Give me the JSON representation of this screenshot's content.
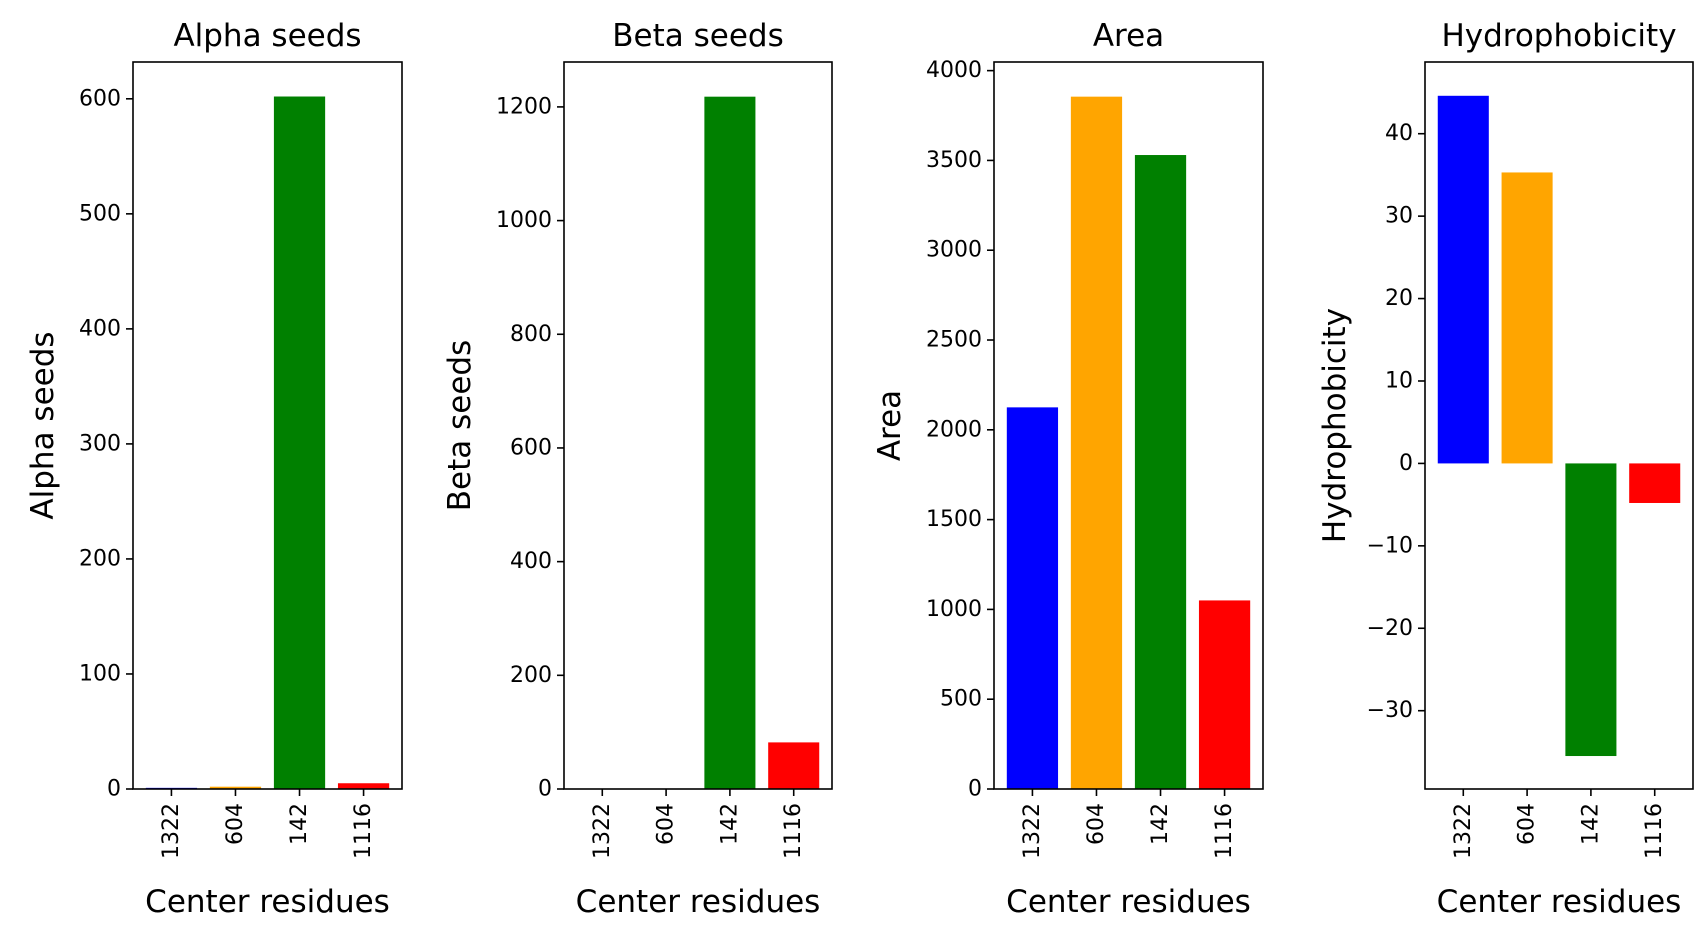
{
  "chart_data": [
    {
      "type": "bar",
      "title": "Alpha seeds",
      "xlabel": "Center residues",
      "ylabel": "Alpha seeds",
      "categories": [
        "1322",
        "604",
        "142",
        "1116"
      ],
      "values": [
        1,
        2,
        602,
        5
      ],
      "colors": [
        "#0000ff",
        "#ffa500",
        "#008000",
        "#ff0000"
      ],
      "ylim": [
        0,
        632
      ],
      "yticks": [
        0,
        100,
        200,
        300,
        400,
        500,
        600
      ],
      "ytick_labels": [
        "0",
        "100",
        "200",
        "300",
        "400",
        "500",
        "600"
      ]
    },
    {
      "type": "bar",
      "title": "Beta seeds",
      "xlabel": "Center residues",
      "ylabel": "Beta seeds",
      "categories": [
        "1322",
        "604",
        "142",
        "1116"
      ],
      "values": [
        0,
        0,
        1218,
        82
      ],
      "colors": [
        "#0000ff",
        "#ffa500",
        "#008000",
        "#ff0000"
      ],
      "ylim": [
        0,
        1279
      ],
      "yticks": [
        0,
        200,
        400,
        600,
        800,
        1000,
        1200
      ],
      "ytick_labels": [
        "0",
        "200",
        "400",
        "600",
        "800",
        "1000",
        "1200"
      ]
    },
    {
      "type": "bar",
      "title": "Area",
      "xlabel": "Center residues",
      "ylabel": "Area",
      "categories": [
        "1322",
        "604",
        "142",
        "1116"
      ],
      "values": [
        2125,
        3855,
        3530,
        1050
      ],
      "colors": [
        "#0000ff",
        "#ffa500",
        "#008000",
        "#ff0000"
      ],
      "ylim": [
        0,
        4048
      ],
      "yticks": [
        0,
        500,
        1000,
        1500,
        2000,
        2500,
        3000,
        3500,
        4000
      ],
      "ytick_labels": [
        "0",
        "500",
        "1000",
        "1500",
        "2000",
        "2500",
        "3000",
        "3500",
        "4000"
      ]
    },
    {
      "type": "bar",
      "title": "Hydrophobicity",
      "xlabel": "Center residues",
      "ylabel": "Hydrophobicity",
      "categories": [
        "1322",
        "604",
        "142",
        "1116"
      ],
      "values": [
        44.6,
        35.3,
        -35.5,
        -4.8
      ],
      "colors": [
        "#0000ff",
        "#ffa500",
        "#008000",
        "#ff0000"
      ],
      "ylim": [
        -39.5,
        48.7
      ],
      "yticks": [
        -30,
        -20,
        -10,
        0,
        10,
        20,
        30,
        40
      ],
      "ytick_labels": [
        "−30",
        "−20",
        "−10",
        "0",
        "10",
        "20",
        "30",
        "40"
      ]
    }
  ]
}
